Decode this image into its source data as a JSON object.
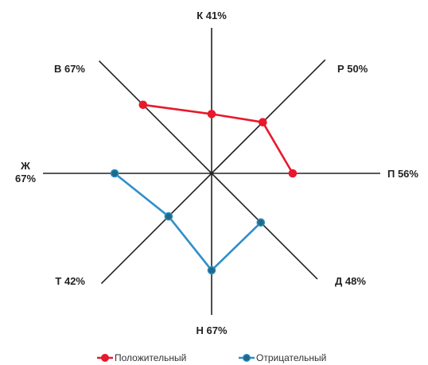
{
  "chart_data": {
    "type": "radar",
    "title": "",
    "axes": [
      {
        "key": "К",
        "label": "К 41%",
        "lines": [
          "К 41%"
        ],
        "direction": "top"
      },
      {
        "key": "Р",
        "label": "Р 50%",
        "lines": [
          "Р 50%"
        ],
        "direction": "top-right"
      },
      {
        "key": "П",
        "label": "П 56%",
        "lines": [
          "П 56%"
        ],
        "direction": "right"
      },
      {
        "key": "Д",
        "label": "Д 48%",
        "lines": [
          "Д 48%"
        ],
        "direction": "bottom-right"
      },
      {
        "key": "Н",
        "label": "Н 67%",
        "lines": [
          "Н 67%"
        ],
        "direction": "bottom"
      },
      {
        "key": "Т",
        "label": "Т 42%",
        "lines": [
          "Т 42%"
        ],
        "direction": "bottom-left"
      },
      {
        "key": "Ж",
        "label": "Ж 67%",
        "lines": [
          "Ж",
          "67%"
        ],
        "direction": "left"
      },
      {
        "key": "В",
        "label": "В 67%",
        "lines": [
          "В 67%"
        ],
        "direction": "top-left"
      }
    ],
    "axis_max": 100,
    "series": [
      {
        "name": "Положительный",
        "color": "#e8192c",
        "marker_color": "#e8192c",
        "points": [
          {
            "axis": "В",
            "value": 67
          },
          {
            "axis": "К",
            "value": 41
          },
          {
            "axis": "Р",
            "value": 50
          },
          {
            "axis": "П",
            "value": 56
          }
        ]
      },
      {
        "name": "Отрицательный",
        "color": "#2f8fc8",
        "marker_color": "#1e6b87",
        "points": [
          {
            "axis": "Ж",
            "value": 67
          },
          {
            "axis": "Т",
            "value": 42
          },
          {
            "axis": "Н",
            "value": 67
          },
          {
            "axis": "Д",
            "value": 48
          }
        ]
      }
    ],
    "legend": {
      "placement": "bottom",
      "entries": [
        "Положительный",
        "Отрицательный"
      ]
    },
    "grid": false
  }
}
